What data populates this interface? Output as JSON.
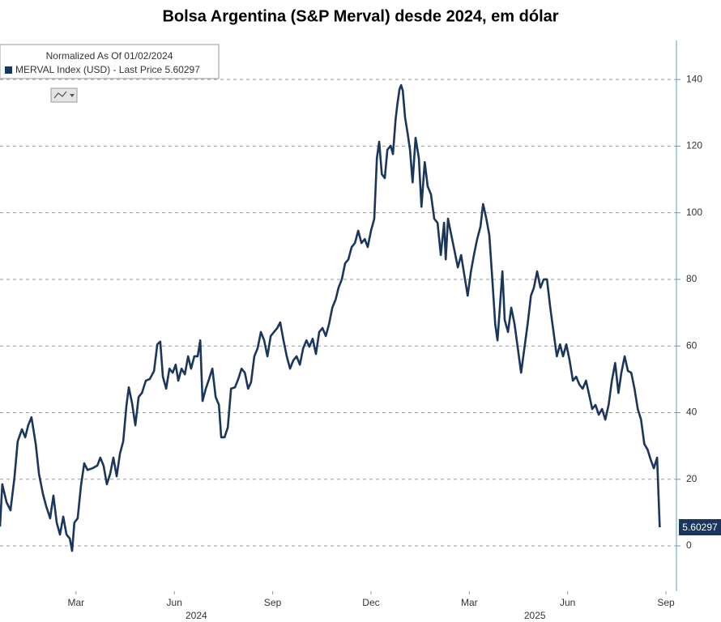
{
  "chart_data": {
    "type": "line",
    "title": "Bolsa Argentina (S&P Merval) desde 2024, em dólar",
    "legend_title": "Normalized As Of 01/02/2024",
    "xlim": [
      -0.32,
      20.32
    ],
    "xticks": [
      {
        "value": 2,
        "label": "Mar"
      },
      {
        "value": 5,
        "label": "Jun"
      },
      {
        "value": 8,
        "label": "Sep"
      },
      {
        "value": 11,
        "label": "Dec"
      },
      {
        "value": 14,
        "label": "Mar"
      },
      {
        "value": 17,
        "label": "Jun"
      },
      {
        "value": 20,
        "label": "Sep"
      }
    ],
    "x_year_labels": [
      {
        "value": 5.67,
        "label": "2024"
      },
      {
        "value": 16.0,
        "label": "2025"
      }
    ],
    "ylim": [
      -13.6,
      151.7
    ],
    "yticks": [
      0,
      20,
      40,
      60,
      80,
      100,
      120,
      140
    ],
    "grid": true,
    "x": [
      -0.32,
      -0.25,
      -0.12,
      0,
      0.12,
      0.22,
      0.35,
      0.45,
      0.54,
      0.64,
      0.77,
      0.87,
      0.99,
      1.09,
      1.21,
      1.31,
      1.41,
      1.51,
      1.61,
      1.71,
      1.81,
      1.88,
      1.95,
      2.05,
      2.15,
      2.25,
      2.35,
      2.5,
      2.65,
      2.74,
      2.84,
      2.94,
      3.04,
      3.14,
      3.24,
      3.34,
      3.44,
      3.54,
      3.61,
      3.71,
      3.81,
      3.91,
      4.01,
      4.13,
      4.25,
      4.38,
      4.48,
      4.57,
      4.65,
      4.75,
      4.85,
      4.95,
      5.04,
      5.12,
      5.22,
      5.32,
      5.42,
      5.51,
      5.61,
      5.71,
      5.79,
      5.86,
      5.96,
      6.06,
      6.16,
      6.26,
      6.36,
      6.43,
      6.53,
      6.63,
      6.73,
      6.85,
      6.95,
      7.05,
      7.15,
      7.25,
      7.34,
      7.44,
      7.54,
      7.64,
      7.74,
      7.84,
      7.94,
      8.04,
      8.14,
      8.23,
      8.33,
      8.43,
      8.53,
      8.63,
      8.73,
      8.83,
      8.93,
      9.03,
      9.12,
      9.22,
      9.32,
      9.42,
      9.52,
      9.62,
      9.72,
      9.82,
      9.92,
      10.01,
      10.11,
      10.21,
      10.31,
      10.41,
      10.51,
      10.61,
      10.71,
      10.81,
      10.9,
      11.0,
      11.1,
      11.18,
      11.25,
      11.33,
      11.42,
      11.5,
      11.6,
      11.67,
      11.75,
      11.8,
      11.87,
      11.92,
      11.97,
      12.04,
      12.12,
      12.19,
      12.27,
      12.36,
      12.46,
      12.54,
      12.64,
      12.73,
      12.83,
      12.93,
      13.03,
      13.13,
      13.23,
      13.28,
      13.35,
      13.45,
      13.55,
      13.65,
      13.75,
      13.85,
      13.95,
      14.05,
      14.14,
      14.24,
      14.34,
      14.42,
      14.52,
      14.61,
      14.71,
      14.79,
      14.86,
      14.94,
      15.01,
      15.08,
      15.18,
      15.28,
      15.38,
      15.48,
      15.58,
      15.68,
      15.78,
      15.88,
      15.97,
      16.07,
      16.17,
      16.27,
      16.37,
      16.47,
      16.57,
      16.67,
      16.77,
      16.86,
      16.96,
      17.06,
      17.16,
      17.26,
      17.36,
      17.46,
      17.56,
      17.66,
      17.75,
      17.85,
      17.95,
      18.05,
      18.15,
      18.25,
      18.35,
      18.45,
      18.55,
      18.64,
      18.74,
      18.84,
      18.94,
      19.04,
      19.14,
      19.24,
      19.34,
      19.44,
      19.53,
      19.63,
      19.73,
      19.81
    ],
    "series": [
      {
        "name": "MERVAL Index (USD) - Last Price 5.60297",
        "color": "#1b365d",
        "values": [
          5.8,
          18.5,
          13.1,
          10.7,
          20.4,
          31.4,
          35.0,
          32.6,
          36.2,
          38.6,
          30.6,
          21.6,
          15.6,
          11.9,
          8.3,
          15.1,
          7.0,
          3.4,
          8.8,
          3.4,
          2.2,
          -1.5,
          7.0,
          8.3,
          18.0,
          24.8,
          22.8,
          23.3,
          24.1,
          26.5,
          24.1,
          18.5,
          21.6,
          26.5,
          20.9,
          27.7,
          31.4,
          42.3,
          47.6,
          42.8,
          36.2,
          44.7,
          45.9,
          49.6,
          50.1,
          52.5,
          60.5,
          61.3,
          50.8,
          47.2,
          53.2,
          52.0,
          54.4,
          49.6,
          53.2,
          51.5,
          56.9,
          53.2,
          56.9,
          56.9,
          61.7,
          43.5,
          47.2,
          50.1,
          53.2,
          44.7,
          42.3,
          32.6,
          32.6,
          35.5,
          47.2,
          47.6,
          50.1,
          53.2,
          52.0,
          47.2,
          49.1,
          56.9,
          59.3,
          64.2,
          61.7,
          56.9,
          63.0,
          64.2,
          65.4,
          67.1,
          61.7,
          56.9,
          53.2,
          55.7,
          56.9,
          54.4,
          59.3,
          61.7,
          59.8,
          62.2,
          57.6,
          64.2,
          65.4,
          63.0,
          66.6,
          71.5,
          73.9,
          77.5,
          80.0,
          84.8,
          86.0,
          89.7,
          90.9,
          94.6,
          90.9,
          92.1,
          89.7,
          94.6,
          98.2,
          116.4,
          121.3,
          111.6,
          110.4,
          118.9,
          120.1,
          117.6,
          127.9,
          132.2,
          137.1,
          138.3,
          136.6,
          128.6,
          123.7,
          118.9,
          109.1,
          122.5,
          116.4,
          101.8,
          115.2,
          107.9,
          105.5,
          98.2,
          97.0,
          87.3,
          97.0,
          86.0,
          98.2,
          93.3,
          88.5,
          83.6,
          87.3,
          81.2,
          75.1,
          82.4,
          87.3,
          92.1,
          95.8,
          102.6,
          98.2,
          93.3,
          78.8,
          66.6,
          61.7,
          72.7,
          82.4,
          67.8,
          64.2,
          71.5,
          66.6,
          59.3,
          52.0,
          59.3,
          66.6,
          75.1,
          77.5,
          82.4,
          77.5,
          80.0,
          80.0,
          71.5,
          64.2,
          56.9,
          60.5,
          56.9,
          60.5,
          55.7,
          49.6,
          50.8,
          48.4,
          47.2,
          49.6,
          45.2,
          41.1,
          42.3,
          39.4,
          41.1,
          37.9,
          42.3,
          49.6,
          54.9,
          45.9,
          52.0,
          56.9,
          52.5,
          52.0,
          47.2,
          41.1,
          37.9,
          30.6,
          28.9,
          26.0,
          23.3,
          26.5,
          5.60297
        ]
      }
    ]
  }
}
